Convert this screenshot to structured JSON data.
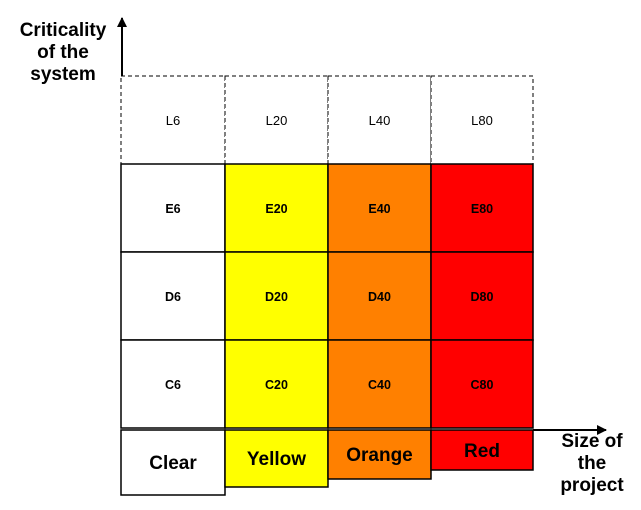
{
  "diagram": {
    "y_axis_label": [
      "Criticality",
      "of the",
      "system"
    ],
    "x_axis_label": [
      "Size of",
      "the",
      "project"
    ],
    "columns": [
      {
        "name": "Clear",
        "color": "#ffffff",
        "cells": [
          "L6",
          "E6",
          "D6",
          "C6"
        ]
      },
      {
        "name": "Yellow",
        "color": "#ffff00",
        "cells": [
          "L20",
          "E20",
          "D20",
          "C20"
        ]
      },
      {
        "name": "Orange",
        "color": "#ff8000",
        "cells": [
          "L40",
          "E40",
          "D40",
          "C40"
        ]
      },
      {
        "name": "Red",
        "color": "#ff0000",
        "cells": [
          "L80",
          "E80",
          "D80",
          "C80"
        ]
      }
    ]
  }
}
